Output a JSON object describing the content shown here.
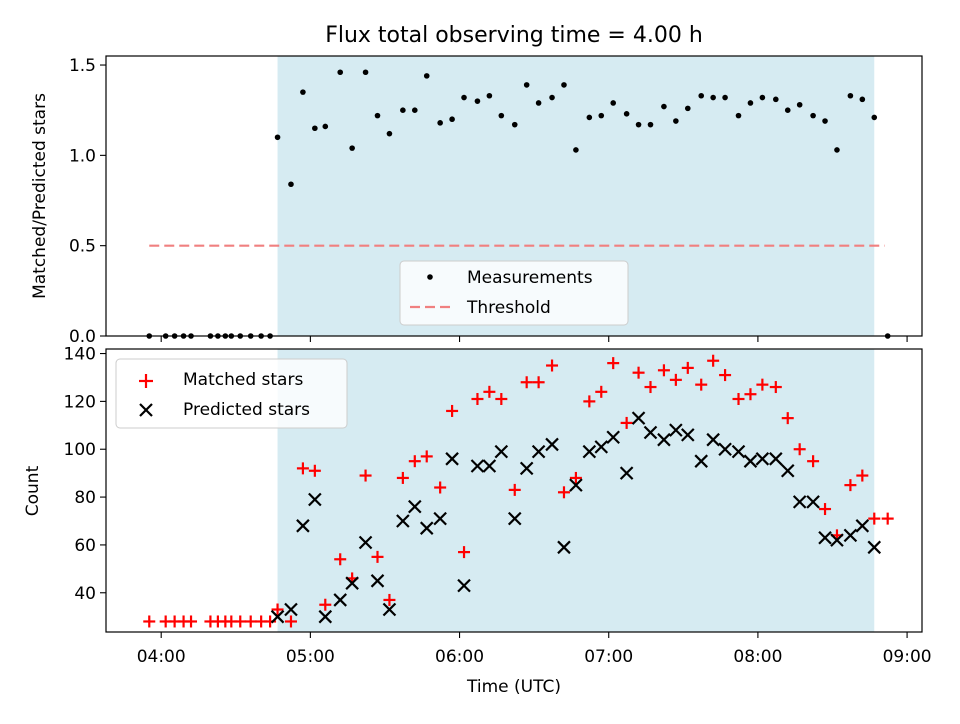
{
  "chart_data": {
    "title": "Flux total observing time = 4.00 h",
    "x_axis": {
      "label": "Time (UTC)",
      "ticks": [
        "04:00",
        "05:00",
        "06:00",
        "07:00",
        "08:00",
        "09:00"
      ],
      "tick_hours": [
        4,
        5,
        6,
        7,
        8,
        9
      ],
      "range_hours": [
        3.63,
        9.1
      ]
    },
    "observing_window_hours": [
      4.78,
      8.78
    ],
    "colors": {
      "window": "#add8e6",
      "measurements": "#000000",
      "threshold": "#f08080",
      "matched": "#ff0000",
      "predicted": "#000000"
    },
    "panels": [
      {
        "type": "scatter",
        "ylabel": "Matched/Predicted stars",
        "ylim": [
          0,
          1.55
        ],
        "yticks": [
          0.0,
          0.5,
          1.0,
          1.5
        ],
        "ytick_labels": [
          "0.0",
          "0.5",
          "1.0",
          "1.5"
        ],
        "legend": {
          "placement": "lower-center",
          "entries": [
            "Measurements",
            "Threshold"
          ]
        },
        "threshold": {
          "name": "Threshold",
          "y": 0.5,
          "x_range_hours": [
            3.92,
            8.85
          ]
        },
        "series": [
          {
            "name": "Measurements",
            "x": [
              3.92,
              4.03,
              4.09,
              4.15,
              4.2,
              4.33,
              4.38,
              4.43,
              4.47,
              4.53,
              4.6,
              4.67,
              4.73,
              4.78,
              4.87,
              4.95,
              5.03,
              5.1,
              5.2,
              5.28,
              5.37,
              5.45,
              5.53,
              5.62,
              5.7,
              5.78,
              5.87,
              5.95,
              6.03,
              6.12,
              6.2,
              6.28,
              6.37,
              6.45,
              6.53,
              6.62,
              6.7,
              6.78,
              6.87,
              6.95,
              7.03,
              7.12,
              7.2,
              7.28,
              7.37,
              7.45,
              7.53,
              7.62,
              7.7,
              7.78,
              7.87,
              7.95,
              8.03,
              8.12,
              8.2,
              8.28,
              8.37,
              8.45,
              8.53,
              8.62,
              8.7,
              8.78,
              8.87
            ],
            "y": [
              0.0,
              0.0,
              0.0,
              0.0,
              0.0,
              0.0,
              0.0,
              0.0,
              0.0,
              0.0,
              0.0,
              0.0,
              0.0,
              1.1,
              0.84,
              1.35,
              1.15,
              1.16,
              1.46,
              1.04,
              1.46,
              1.22,
              1.12,
              1.25,
              1.25,
              1.44,
              1.18,
              1.2,
              1.32,
              1.3,
              1.33,
              1.22,
              1.17,
              1.39,
              1.29,
              1.32,
              1.39,
              1.03,
              1.21,
              1.22,
              1.29,
              1.23,
              1.17,
              1.17,
              1.27,
              1.19,
              1.26,
              1.33,
              1.32,
              1.32,
              1.22,
              1.29,
              1.32,
              1.31,
              1.25,
              1.28,
              1.22,
              1.19,
              1.03,
              1.33,
              1.31,
              1.21,
              0.0
            ]
          }
        ]
      },
      {
        "type": "scatter",
        "ylabel": "Count",
        "ylim": [
          23.6,
          141.9
        ],
        "yticks": [
          40,
          60,
          80,
          100,
          120,
          140
        ],
        "ytick_labels": [
          "40",
          "60",
          "80",
          "100",
          "120",
          "140"
        ],
        "legend": {
          "placement": "upper-left",
          "entries": [
            "Matched stars",
            "Predicted stars"
          ]
        },
        "series": [
          {
            "name": "Matched stars",
            "marker": "plus",
            "x": [
              3.92,
              4.03,
              4.09,
              4.15,
              4.2,
              4.33,
              4.38,
              4.43,
              4.47,
              4.53,
              4.6,
              4.67,
              4.73,
              4.78,
              4.87,
              4.95,
              5.03,
              5.1,
              5.2,
              5.28,
              5.37,
              5.45,
              5.53,
              5.62,
              5.7,
              5.78,
              5.87,
              5.95,
              6.03,
              6.12,
              6.2,
              6.28,
              6.37,
              6.45,
              6.53,
              6.62,
              6.7,
              6.78,
              6.87,
              6.95,
              7.03,
              7.12,
              7.2,
              7.28,
              7.37,
              7.45,
              7.53,
              7.62,
              7.7,
              7.78,
              7.87,
              7.95,
              8.03,
              8.12,
              8.2,
              8.28,
              8.37,
              8.45,
              8.53,
              8.62,
              8.7,
              8.78,
              8.87
            ],
            "y": [
              28,
              28,
              28,
              28,
              28,
              28,
              28,
              28,
              28,
              28,
              28,
              28,
              28,
              33,
              28,
              92,
              91,
              35,
              54,
              46,
              89,
              55,
              37,
              88,
              95,
              97,
              84,
              116,
              57,
              121,
              124,
              121,
              83,
              128,
              128,
              135,
              82,
              88,
              120,
              124,
              136,
              111,
              132,
              126,
              133,
              129,
              134,
              127,
              137,
              131,
              121,
              123,
              127,
              126,
              113,
              100,
              95,
              75,
              64,
              85,
              89,
              71,
              71
            ]
          },
          {
            "name": "Predicted stars",
            "marker": "x",
            "x": [
              4.78,
              4.87,
              4.95,
              5.03,
              5.1,
              5.2,
              5.28,
              5.37,
              5.45,
              5.53,
              5.62,
              5.7,
              5.78,
              5.87,
              5.95,
              6.03,
              6.12,
              6.2,
              6.28,
              6.37,
              6.45,
              6.53,
              6.62,
              6.7,
              6.78,
              6.87,
              6.95,
              7.03,
              7.12,
              7.2,
              7.28,
              7.37,
              7.45,
              7.53,
              7.62,
              7.7,
              7.78,
              7.87,
              7.95,
              8.03,
              8.12,
              8.2,
              8.28,
              8.37,
              8.45,
              8.53,
              8.62,
              8.7,
              8.78
            ],
            "y": [
              30,
              33,
              68,
              79,
              30,
              37,
              44,
              61,
              45,
              33,
              70,
              76,
              67,
              71,
              96,
              43,
              93,
              93,
              99,
              71,
              92,
              99,
              102,
              59,
              85,
              99,
              101,
              105,
              90,
              113,
              107,
              104,
              108,
              106,
              95,
              104,
              100,
              99,
              95,
              96,
              96,
              91,
              78,
              78,
              63,
              62,
              64,
              68,
              59
            ]
          }
        ]
      }
    ]
  }
}
